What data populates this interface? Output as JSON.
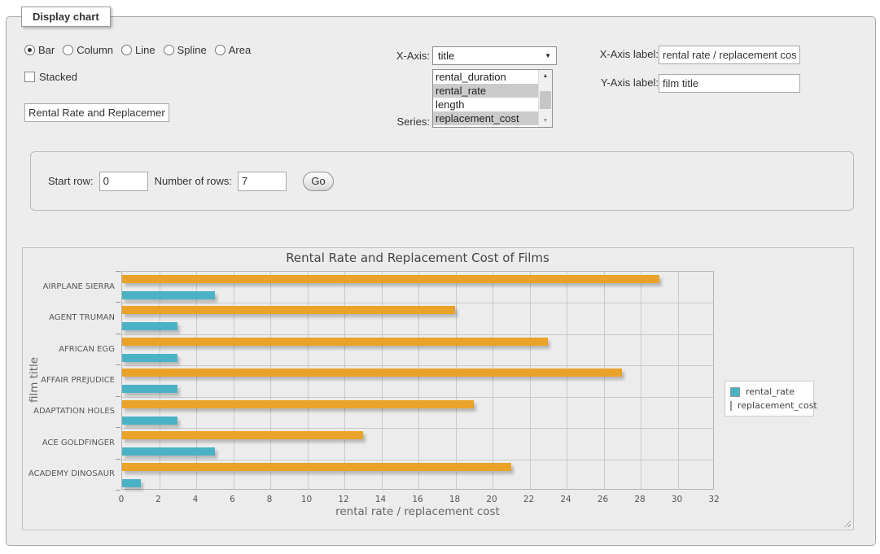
{
  "panel": {
    "legend": "Display chart"
  },
  "controls": {
    "chart_types": [
      {
        "label": "Bar",
        "selected": true
      },
      {
        "label": "Column",
        "selected": false
      },
      {
        "label": "Line",
        "selected": false
      },
      {
        "label": "Spline",
        "selected": false
      },
      {
        "label": "Area",
        "selected": false
      }
    ],
    "stacked_label": "Stacked",
    "chart_title_value": "Rental Rate and Replacement Cost of Films",
    "x_axis_select": {
      "label": "X-Axis:",
      "value": "title"
    },
    "series_select": {
      "label": "Series:",
      "options": [
        {
          "label": "rental_duration",
          "selected": false
        },
        {
          "label": "rental_rate",
          "selected": true
        },
        {
          "label": "length",
          "selected": false
        },
        {
          "label": "replacement_cost",
          "selected": true
        }
      ]
    },
    "x_axis_label_field": {
      "label": "X-Axis label:",
      "value": "rental rate / replacement cost"
    },
    "y_axis_label_field": {
      "label": "Y-Axis label:",
      "value": "film title"
    }
  },
  "row_controls": {
    "start_row_label": "Start row:",
    "start_row_value": "0",
    "num_rows_label": "Number of rows:",
    "num_rows_value": "7",
    "go_label": "Go"
  },
  "icons": {
    "select_arrow": "▼",
    "scroll_up": "▲",
    "scroll_down": "▼"
  },
  "colors": {
    "series_teal": "#4bb2c5",
    "series_orange": "#eaa228",
    "list_selection": "#cbcbcb",
    "panel_bg": "#ededed"
  },
  "chart_data": {
    "type": "bar",
    "orientation": "horizontal",
    "title": "Rental Rate and Replacement Cost of Films",
    "categories": [
      "AIRPLANE SIERRA",
      "AGENT TRUMAN",
      "AFRICAN EGG",
      "AFFAIR PREJUDICE",
      "ADAPTATION HOLES",
      "ACE GOLDFINGER",
      "ACADEMY DINOSAUR"
    ],
    "series": [
      {
        "name": "rental_rate",
        "color": "#4bb2c5",
        "values": [
          4.99,
          2.99,
          2.99,
          2.99,
          2.99,
          4.99,
          0.99
        ]
      },
      {
        "name": "replacement_cost",
        "color": "#eaa228",
        "values": [
          28.99,
          17.99,
          22.99,
          26.99,
          18.99,
          12.99,
          20.99
        ]
      }
    ],
    "xlabel": "rental rate / replacement cost",
    "ylabel": "film title",
    "xlim": [
      0,
      32
    ],
    "xticks": [
      0,
      2,
      4,
      6,
      8,
      10,
      12,
      14,
      16,
      18,
      20,
      22,
      24,
      26,
      28,
      30,
      32
    ],
    "grid": true,
    "legend_position": "right"
  }
}
